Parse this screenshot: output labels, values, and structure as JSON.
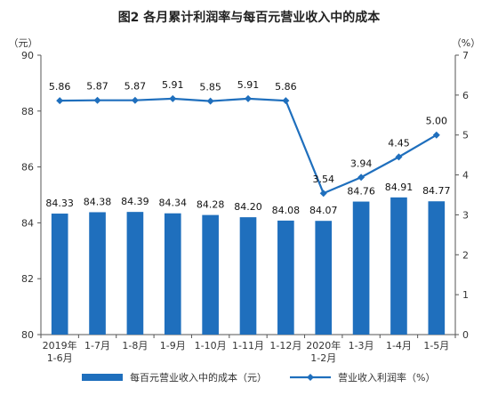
{
  "chart_data": {
    "type": "bar",
    "title": "图2  各月累计利润率与每百元营业收入中的成本",
    "left_unit": "（元）",
    "right_unit": "（%）",
    "categories": [
      {
        "line1": "2019年",
        "line2": "1-6月"
      },
      {
        "line1": "1-7月",
        "line2": ""
      },
      {
        "line1": "1-8月",
        "line2": ""
      },
      {
        "line1": "1-9月",
        "line2": ""
      },
      {
        "line1": "1-10月",
        "line2": ""
      },
      {
        "line1": "1-11月",
        "line2": ""
      },
      {
        "line1": "1-12月",
        "line2": ""
      },
      {
        "line1": "2020年",
        "line2": "1-2月"
      },
      {
        "line1": "1-3月",
        "line2": ""
      },
      {
        "line1": "1-4月",
        "line2": ""
      },
      {
        "line1": "1-5月",
        "line2": ""
      }
    ],
    "series": [
      {
        "name": "每百元营业收入中的成本（元）",
        "type": "bar",
        "axis": "left",
        "color": "#1f6fbd",
        "values": [
          84.33,
          84.38,
          84.39,
          84.34,
          84.28,
          84.2,
          84.08,
          84.07,
          84.76,
          84.91,
          84.77
        ],
        "labels": [
          "84.33",
          "84.38",
          "84.39",
          "84.34",
          "84.28",
          "84.20",
          "84.08",
          "84.07",
          "84.76",
          "84.91",
          "84.77"
        ]
      },
      {
        "name": "营业收入利润率（%）",
        "type": "line",
        "axis": "right",
        "color": "#1f6fbd",
        "values": [
          5.86,
          5.87,
          5.87,
          5.91,
          5.85,
          5.91,
          5.86,
          3.54,
          3.94,
          4.45,
          5.0
        ],
        "labels": [
          "5.86",
          "5.87",
          "5.87",
          "5.91",
          "5.85",
          "5.91",
          "5.86",
          "3.54",
          "3.94",
          "4.45",
          "5.00"
        ]
      }
    ],
    "left_axis": {
      "min": 80,
      "max": 90,
      "ticks": [
        "80",
        "82",
        "84",
        "86",
        "88",
        "90"
      ]
    },
    "right_axis": {
      "min": 0,
      "max": 7,
      "ticks": [
        "0",
        "1",
        "2",
        "3",
        "4",
        "5",
        "6",
        "7"
      ]
    },
    "grid": false,
    "legend_position": "bottom"
  }
}
